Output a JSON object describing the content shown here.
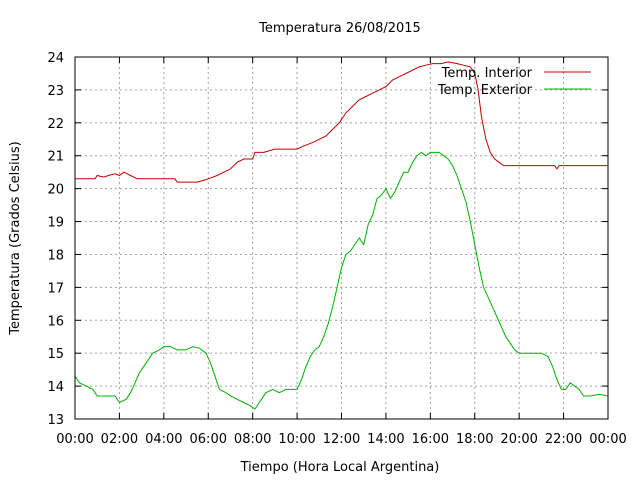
{
  "chart_data": {
    "type": "line",
    "title": "Temperatura 26/08/2015",
    "xlabel": "Tiempo (Hora Local Argentina)",
    "ylabel": "Temperatura (Grados Celsius)",
    "xlim": [
      0,
      24
    ],
    "ylim": [
      13,
      24
    ],
    "x_ticks": [
      0,
      2,
      4,
      6,
      8,
      10,
      12,
      14,
      16,
      18,
      20,
      22,
      24
    ],
    "x_tick_labels": [
      "00:00",
      "02:00",
      "04:00",
      "06:00",
      "08:00",
      "10:00",
      "12:00",
      "14:00",
      "16:00",
      "18:00",
      "20:00",
      "22:00",
      "00:00"
    ],
    "y_ticks": [
      13,
      14,
      15,
      16,
      17,
      18,
      19,
      20,
      21,
      22,
      23,
      24
    ],
    "y_tick_labels": [
      "13",
      "14",
      "15",
      "16",
      "17",
      "18",
      "19",
      "20",
      "21",
      "22",
      "23",
      "24"
    ],
    "grid": true,
    "legend": "top-right",
    "series": [
      {
        "name": "Temp. Interior",
        "color": "#c00000",
        "points": [
          [
            0,
            20.3
          ],
          [
            0.5,
            20.3
          ],
          [
            0.9,
            20.3
          ],
          [
            1.0,
            20.4
          ],
          [
            1.3,
            20.35
          ],
          [
            1.5,
            20.4
          ],
          [
            1.8,
            20.45
          ],
          [
            2.0,
            20.4
          ],
          [
            2.2,
            20.5
          ],
          [
            2.5,
            20.4
          ],
          [
            2.8,
            20.3
          ],
          [
            3.5,
            20.3
          ],
          [
            4.0,
            20.3
          ],
          [
            4.5,
            20.3
          ],
          [
            4.6,
            20.2
          ],
          [
            5.5,
            20.2
          ],
          [
            5.8,
            20.25
          ],
          [
            6.0,
            20.3
          ],
          [
            6.4,
            20.4
          ],
          [
            6.7,
            20.5
          ],
          [
            7.0,
            20.6
          ],
          [
            7.3,
            20.8
          ],
          [
            7.6,
            20.9
          ],
          [
            8.0,
            20.9
          ],
          [
            8.1,
            21.1
          ],
          [
            8.5,
            21.1
          ],
          [
            9.0,
            21.2
          ],
          [
            9.5,
            21.2
          ],
          [
            10.0,
            21.2
          ],
          [
            10.3,
            21.3
          ],
          [
            10.7,
            21.4
          ],
          [
            11.0,
            21.5
          ],
          [
            11.3,
            21.6
          ],
          [
            11.6,
            21.8
          ],
          [
            11.9,
            22.0
          ],
          [
            12.2,
            22.3
          ],
          [
            12.5,
            22.5
          ],
          [
            12.8,
            22.7
          ],
          [
            13.1,
            22.8
          ],
          [
            13.4,
            22.9
          ],
          [
            13.7,
            23.0
          ],
          [
            14.0,
            23.1
          ],
          [
            14.3,
            23.3
          ],
          [
            14.6,
            23.4
          ],
          [
            14.9,
            23.5
          ],
          [
            15.2,
            23.6
          ],
          [
            15.5,
            23.7
          ],
          [
            15.8,
            23.75
          ],
          [
            16.1,
            23.8
          ],
          [
            16.5,
            23.8
          ],
          [
            16.8,
            23.85
          ],
          [
            17.2,
            23.8
          ],
          [
            17.5,
            23.75
          ],
          [
            17.8,
            23.7
          ],
          [
            18.0,
            23.5
          ],
          [
            18.15,
            23.0
          ],
          [
            18.3,
            22.2
          ],
          [
            18.5,
            21.5
          ],
          [
            18.7,
            21.1
          ],
          [
            18.9,
            20.9
          ],
          [
            19.1,
            20.8
          ],
          [
            19.3,
            20.7
          ],
          [
            20.0,
            20.7
          ],
          [
            21.0,
            20.7
          ],
          [
            21.6,
            20.7
          ],
          [
            21.7,
            20.6
          ],
          [
            21.8,
            20.7
          ],
          [
            22.5,
            20.7
          ],
          [
            23.5,
            20.7
          ],
          [
            24.0,
            20.7
          ]
        ]
      },
      {
        "name": "Temp. Exterior",
        "color": "#00b000",
        "points": [
          [
            0,
            14.3
          ],
          [
            0.2,
            14.1
          ],
          [
            0.5,
            14.0
          ],
          [
            0.8,
            13.9
          ],
          [
            1.0,
            13.7
          ],
          [
            1.5,
            13.7
          ],
          [
            1.8,
            13.7
          ],
          [
            2.0,
            13.5
          ],
          [
            2.3,
            13.6
          ],
          [
            2.5,
            13.8
          ],
          [
            2.7,
            14.1
          ],
          [
            2.9,
            14.4
          ],
          [
            3.1,
            14.6
          ],
          [
            3.3,
            14.8
          ],
          [
            3.5,
            15.0
          ],
          [
            3.8,
            15.1
          ],
          [
            4.0,
            15.2
          ],
          [
            4.3,
            15.2
          ],
          [
            4.6,
            15.1
          ],
          [
            5.0,
            15.1
          ],
          [
            5.3,
            15.2
          ],
          [
            5.6,
            15.15
          ],
          [
            5.9,
            15.0
          ],
          [
            6.1,
            14.7
          ],
          [
            6.3,
            14.3
          ],
          [
            6.5,
            13.9
          ],
          [
            6.8,
            13.8
          ],
          [
            7.0,
            13.7
          ],
          [
            7.3,
            13.6
          ],
          [
            7.6,
            13.5
          ],
          [
            7.9,
            13.4
          ],
          [
            8.1,
            13.3
          ],
          [
            8.3,
            13.5
          ],
          [
            8.6,
            13.8
          ],
          [
            8.9,
            13.9
          ],
          [
            9.2,
            13.8
          ],
          [
            9.5,
            13.9
          ],
          [
            9.8,
            13.9
          ],
          [
            10.0,
            13.9
          ],
          [
            10.2,
            14.2
          ],
          [
            10.4,
            14.6
          ],
          [
            10.6,
            14.9
          ],
          [
            10.8,
            15.1
          ],
          [
            11.0,
            15.2
          ],
          [
            11.2,
            15.5
          ],
          [
            11.4,
            15.9
          ],
          [
            11.6,
            16.4
          ],
          [
            11.8,
            17.0
          ],
          [
            12.0,
            17.6
          ],
          [
            12.2,
            18.0
          ],
          [
            12.4,
            18.1
          ],
          [
            12.6,
            18.3
          ],
          [
            12.8,
            18.5
          ],
          [
            13.0,
            18.3
          ],
          [
            13.2,
            18.9
          ],
          [
            13.4,
            19.2
          ],
          [
            13.6,
            19.7
          ],
          [
            13.8,
            19.8
          ],
          [
            14.0,
            20.0
          ],
          [
            14.2,
            19.7
          ],
          [
            14.4,
            19.9
          ],
          [
            14.6,
            20.2
          ],
          [
            14.8,
            20.5
          ],
          [
            15.0,
            20.5
          ],
          [
            15.2,
            20.8
          ],
          [
            15.4,
            21.0
          ],
          [
            15.6,
            21.1
          ],
          [
            15.8,
            21.0
          ],
          [
            16.0,
            21.1
          ],
          [
            16.2,
            21.1
          ],
          [
            16.4,
            21.1
          ],
          [
            16.6,
            21.0
          ],
          [
            16.8,
            20.9
          ],
          [
            17.0,
            20.7
          ],
          [
            17.2,
            20.4
          ],
          [
            17.4,
            20.0
          ],
          [
            17.6,
            19.6
          ],
          [
            17.8,
            19.0
          ],
          [
            18.0,
            18.3
          ],
          [
            18.2,
            17.6
          ],
          [
            18.4,
            17.0
          ],
          [
            18.6,
            16.7
          ],
          [
            18.8,
            16.4
          ],
          [
            19.0,
            16.1
          ],
          [
            19.2,
            15.8
          ],
          [
            19.4,
            15.5
          ],
          [
            19.6,
            15.3
          ],
          [
            19.8,
            15.1
          ],
          [
            20.0,
            15.0
          ],
          [
            20.5,
            15.0
          ],
          [
            21.0,
            15.0
          ],
          [
            21.3,
            14.9
          ],
          [
            21.5,
            14.6
          ],
          [
            21.7,
            14.2
          ],
          [
            21.9,
            13.9
          ],
          [
            22.1,
            13.9
          ],
          [
            22.3,
            14.1
          ],
          [
            22.5,
            14.0
          ],
          [
            22.7,
            13.9
          ],
          [
            22.9,
            13.7
          ],
          [
            23.2,
            13.7
          ],
          [
            23.6,
            13.75
          ],
          [
            24.0,
            13.7
          ]
        ]
      }
    ]
  }
}
